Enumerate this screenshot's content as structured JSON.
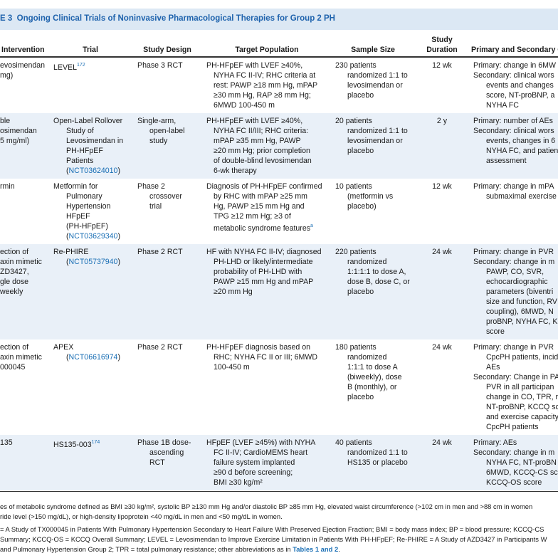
{
  "title": {
    "label": "E 3",
    "text": "Ongoing Clinical Trials of Noninvasive Pharmacological Therapies for Group 2 PH"
  },
  "header": {
    "intervention": [
      "Intervention"
    ],
    "trial": [
      "Trial"
    ],
    "design": [
      "Study Design"
    ],
    "population": [
      "Target Population"
    ],
    "sample": [
      "Sample Size"
    ],
    "duration": [
      "Study",
      "Duration"
    ],
    "outcomes": [
      "Primary and Secondary O"
    ]
  },
  "rows": [
    {
      "intervention": [
        [
          "evosimendan",
          "mg)"
        ]
      ],
      "trial": [
        [
          [
            {
              "t": "LEVEL"
            },
            {
              "sup": "172"
            }
          ]
        ]
      ],
      "design": [
        [
          "Phase 3 RCT"
        ]
      ],
      "population": [
        [
          "PH-HFpEF with LVEF ≥40%,",
          "NYHA FC II-IV; RHC criteria at",
          "rest: PAWP ≥18 mm Hg, mPAP",
          "≥30 mm Hg, RAP ≥8 mm Hg;",
          "6MWD 100-450 m"
        ]
      ],
      "sample": [
        [
          "230 patients",
          "randomized 1:1 to",
          "levosimendan or",
          "placebo"
        ]
      ],
      "duration": [
        [
          "12 wk"
        ]
      ],
      "outcomes": [
        [
          "Primary: change in 6MW"
        ],
        [
          "Secondary: clinical wors",
          "events and changes",
          "score, NT-proBNP, a",
          "NYHA FC"
        ]
      ]
    },
    {
      "intervention": [
        [
          "ble",
          "osimendan",
          "5 mg/ml)"
        ]
      ],
      "trial": [
        [
          "Open-Label Rollover",
          "Study of",
          "Levosimendan in",
          "PH-HFpEF",
          "Patients",
          [
            {
              "t": "("
            },
            {
              "link": "NCT03624010"
            },
            {
              "t": ")"
            }
          ]
        ]
      ],
      "design": [
        [
          "Single-arm,",
          "open-label",
          "study"
        ]
      ],
      "population": [
        [
          "PH-HFpEF with LVEF ≥40%,",
          "NYHA FC II/III; RHC criteria:",
          "mPAP ≥35 mm Hg, PAWP",
          "≥20 mm Hg; prior completion",
          "of double-blind levosimendan",
          "6-wk therapy"
        ]
      ],
      "sample": [
        [
          "20 patients",
          "randomized 1:1 to",
          "levosimendan or",
          "placebo"
        ]
      ],
      "duration": [
        [
          "2 y"
        ]
      ],
      "outcomes": [
        [
          "Primary: number of AEs"
        ],
        [
          "Secondary: clinical wors",
          "events, changes in 6",
          "NYHA FC, and patien",
          "assessment"
        ]
      ]
    },
    {
      "intervention": [
        [
          "rmin"
        ]
      ],
      "trial": [
        [
          "Metformin for",
          "Pulmonary",
          "Hypertension",
          "HFpEF",
          "(PH-HFpEF)",
          [
            {
              "t": "("
            },
            {
              "link": "NCT03629340"
            },
            {
              "t": ")"
            }
          ]
        ]
      ],
      "design": [
        [
          "Phase 2",
          "crossover",
          "trial"
        ]
      ],
      "population": [
        [
          "Diagnosis of PH-HFpEF confirmed",
          "by RHC with mPAP ≥25 mm",
          "Hg, PAWP ≥15 mm Hg and",
          "TPG ≥12 mm Hg; ≥3 of",
          [
            {
              "t": "metabolic syndrome features"
            },
            {
              "sup": "a"
            }
          ]
        ]
      ],
      "sample": [
        [
          "10 patients",
          "(metformin vs",
          "placebo)"
        ]
      ],
      "duration": [
        [
          "12 wk"
        ]
      ],
      "outcomes": [
        [
          "Primary: change in mPA",
          "submaximal exercise"
        ]
      ]
    },
    {
      "intervention": [
        [
          "ection of",
          "axin mimetic",
          "ZD3427,",
          "gle dose",
          "weekly"
        ]
      ],
      "trial": [
        [
          "Re-PHIRE",
          [
            {
              "t": "("
            },
            {
              "link": "NCT05737940"
            },
            {
              "t": ")"
            }
          ]
        ]
      ],
      "design": [
        [
          "Phase 2 RCT"
        ]
      ],
      "population": [
        [
          "HF with NYHA FC II-IV; diagnosed",
          "PH-LHD or likely/intermediate",
          "probability of PH-LHD with",
          "PAWP ≥15 mm Hg and mPAP",
          "≥20 mm Hg"
        ]
      ],
      "sample": [
        [
          "220 patients",
          "randomized",
          "1:1:1:1 to dose A,",
          "dose B, dose C, or",
          "placebo"
        ]
      ],
      "duration": [
        [
          "24 wk"
        ]
      ],
      "outcomes": [
        [
          "Primary: change in PVR"
        ],
        [
          "Secondary: change in m",
          "PAWP, CO, SVR,",
          "echocardiographic",
          "parameters (biventri",
          "size and function, RV",
          "coupling), 6MWD, N",
          "proBNP, NYHA FC, K",
          "score"
        ]
      ]
    },
    {
      "intervention": [
        [
          "ection of",
          "axin mimetic",
          "000045"
        ]
      ],
      "trial": [
        [
          "APEX",
          [
            {
              "t": "("
            },
            {
              "link": "NCT06616974"
            },
            {
              "t": ")"
            }
          ]
        ]
      ],
      "design": [
        [
          "Phase 2 RCT"
        ]
      ],
      "population": [
        [
          "PH-HFpEF diagnosis based on",
          "RHC; NYHA FC II or III; 6MWD",
          "100-450 m"
        ]
      ],
      "sample": [
        [
          "180 patients",
          "randomized",
          "1:1:1 to dose A",
          "(biweekly), dose",
          "B (monthly), or",
          "placebo"
        ]
      ],
      "duration": [
        [
          "24 wk"
        ]
      ],
      "outcomes": [
        [
          "Primary: change in PVR",
          "CpcPH patients, incid",
          "AEs"
        ],
        [
          "Secondary: Change in PA",
          "PVR in all participan",
          "change in CO, TPR, r",
          "NT-proBNP, KCCQ sc",
          "and exercise capacity",
          "CpcPH patients"
        ]
      ]
    },
    {
      "intervention": [
        [
          "135"
        ]
      ],
      "trial": [
        [
          [
            {
              "t": "HS135-003"
            },
            {
              "sup": "174"
            }
          ]
        ]
      ],
      "design": [
        [
          "Phase 1B dose-",
          "ascending",
          "RCT"
        ]
      ],
      "population": [
        [
          "HFpEF (LVEF ≥45%) with NYHA",
          "FC II-IV; CardioMEMS heart",
          "failure system implanted",
          "≥90 d before screening;",
          "BMI ≥30 kg/m²"
        ]
      ],
      "sample": [
        [
          "40 patients",
          "randomized 1:1 to",
          "HS135 or placebo"
        ]
      ],
      "duration": [
        [
          "24 wk"
        ]
      ],
      "outcomes": [
        [
          "Primary: AEs"
        ],
        [
          "Secondary: change in m",
          "NYHA FC, NT-proBN",
          "6MWD, KCCQ-CS sco",
          "KCCQ-OS score"
        ]
      ]
    }
  ],
  "footnotes": [
    [
      "es of metabolic syndrome defined as BMI ≥30 kg/m², systolic BP ≥130 mm Hg and/or diastolic BP ≥85 mm Hg, elevated waist circumference (>102 cm in men and >88 cm in women",
      "ride level (>150 mg/dL), or high-density lipoprotein <40 mg/dL in men and <50 mg/dL in women."
    ],
    [
      "= A Study of TX000045 in Patients With Pulmonary Hypertension Secondary to Heart Failure With Preserved Ejection Fraction; BMI = body mass index; BP = blood pressure; KCCQ-CS",
      "Summary; KCCQ-OS = KCCQ Overall Summary; LEVEL = Levosimendan to Improve Exercise Limitation in Patients With PH-HFpEF; Re-PHIRE = A Study of AZD3427 in Participants W",
      [
        {
          "t": "and Pulmonary Hypertension Group 2; TPR = total pulmonary resistance; other abbreviations as in "
        },
        {
          "link": "Tables 1 and 2"
        },
        {
          "t": "."
        }
      ]
    ]
  ]
}
